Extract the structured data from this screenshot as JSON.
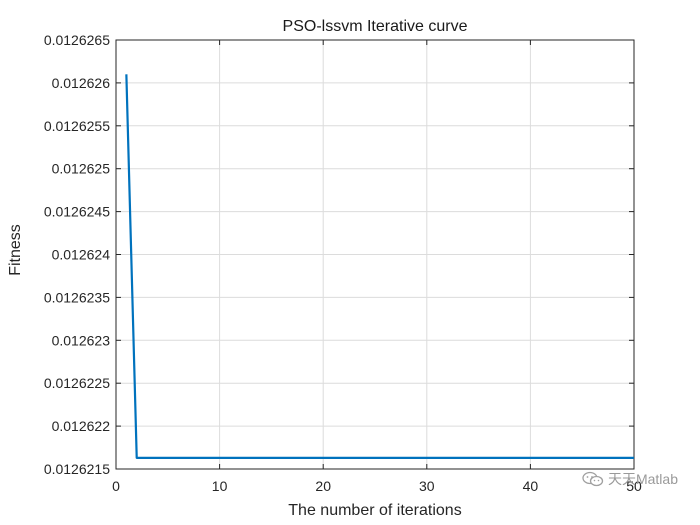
{
  "chart_data": {
    "type": "line",
    "title": "PSO-lssvm Iterative curve",
    "xlabel": "The number of iterations",
    "ylabel": "Fitness",
    "xlim": [
      0,
      50
    ],
    "ylim": [
      0.0126215,
      0.0126265
    ],
    "xticks": [
      0,
      10,
      20,
      30,
      40,
      50
    ],
    "xtick_labels": [
      "0",
      "10",
      "20",
      "30",
      "40",
      "50"
    ],
    "yticks": [
      0.0126215,
      0.012622,
      0.0126225,
      0.012623,
      0.0126235,
      0.012624,
      0.0126245,
      0.012625,
      0.0126255,
      0.012626,
      0.0126265
    ],
    "ytick_labels": [
      "0.0126215",
      "0.012622",
      "0.0126225",
      "0.012623",
      "0.0126235",
      "0.012624",
      "0.0126245",
      "0.012625",
      "0.0126255",
      "0.012626",
      "0.0126265"
    ],
    "grid": true,
    "series": [
      {
        "color": "#0072BD",
        "x": [
          1,
          2,
          3,
          4,
          5,
          6,
          7,
          8,
          9,
          10,
          11,
          12,
          13,
          14,
          15,
          16,
          17,
          18,
          19,
          20,
          21,
          22,
          23,
          24,
          25,
          26,
          27,
          28,
          29,
          30,
          31,
          32,
          33,
          34,
          35,
          36,
          37,
          38,
          39,
          40,
          41,
          42,
          43,
          44,
          45,
          46,
          47,
          48,
          49,
          50
        ],
        "y": [
          0.0126261,
          0.01262163,
          0.01262163,
          0.01262163,
          0.01262163,
          0.01262163,
          0.01262163,
          0.01262163,
          0.01262163,
          0.01262163,
          0.01262163,
          0.01262163,
          0.01262163,
          0.01262163,
          0.01262163,
          0.01262163,
          0.01262163,
          0.01262163,
          0.01262163,
          0.01262163,
          0.01262163,
          0.01262163,
          0.01262163,
          0.01262163,
          0.01262163,
          0.01262163,
          0.01262163,
          0.01262163,
          0.01262163,
          0.01262163,
          0.01262163,
          0.01262163,
          0.01262163,
          0.01262163,
          0.01262163,
          0.01262163,
          0.01262163,
          0.01262163,
          0.01262163,
          0.01262163,
          0.01262163,
          0.01262163,
          0.01262163,
          0.01262163,
          0.01262163,
          0.01262163,
          0.01262163,
          0.01262163,
          0.01262163,
          0.01262163
        ]
      }
    ]
  },
  "watermark": {
    "text": "天天Matlab",
    "icon": "wechat-icon"
  }
}
